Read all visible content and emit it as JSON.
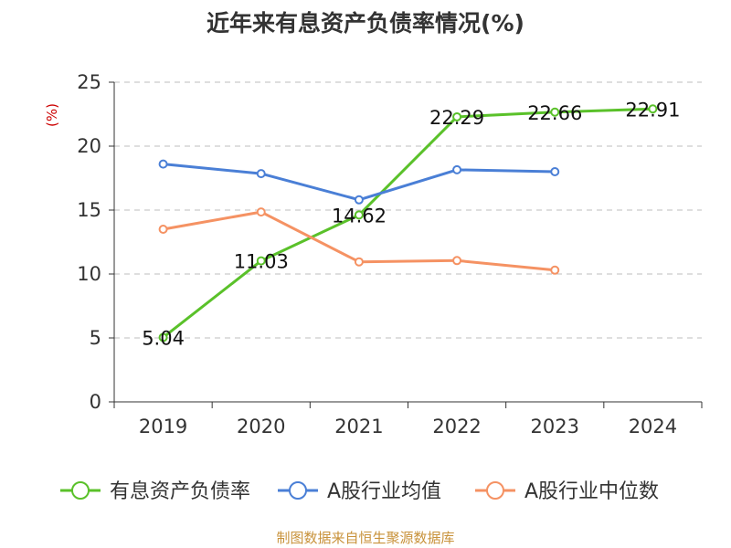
{
  "chart_data": {
    "type": "line",
    "title": "近年来有息资产负债率情况(%)",
    "y_unit": "(%)",
    "categories": [
      "2019",
      "2020",
      "2021",
      "2022",
      "2023",
      "2024"
    ],
    "ylim": [
      0,
      25
    ],
    "y_ticks": [
      0,
      5,
      10,
      15,
      20,
      25
    ],
    "grid": true,
    "legend_position": "bottom",
    "series": [
      {
        "name": "有息资产负债率",
        "color": "#5ac12a",
        "values": [
          5.04,
          11.03,
          14.62,
          22.29,
          22.66,
          22.91
        ],
        "labels": [
          "5.04",
          "11.03",
          "14.62",
          "22.29",
          "22.66",
          "22.91"
        ]
      },
      {
        "name": "A股行业均值",
        "color": "#4a7fd6",
        "values": [
          18.6,
          17.85,
          15.8,
          18.15,
          18.0,
          null
        ]
      },
      {
        "name": "A股行业中位数",
        "color": "#f59263",
        "values": [
          13.5,
          14.85,
          10.95,
          11.05,
          10.3,
          null
        ]
      }
    ]
  },
  "footer": {
    "source": "制图数据来自恒生聚源数据库"
  }
}
